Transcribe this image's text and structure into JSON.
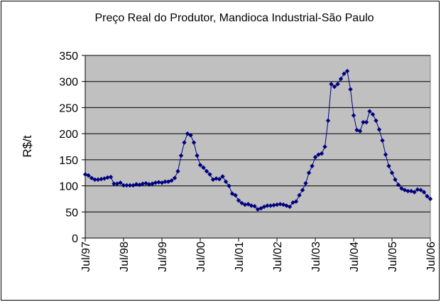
{
  "chart_data": {
    "type": "line",
    "title": "Preço Real do Produtor, Mandioca Industrial-São Paulo",
    "y_label": "R$/t",
    "categories": [
      "Jul/97",
      null,
      null,
      null,
      null,
      null,
      null,
      null,
      null,
      null,
      null,
      null,
      "Jul/98",
      null,
      null,
      null,
      null,
      null,
      null,
      null,
      null,
      null,
      null,
      null,
      "Jul/99",
      null,
      null,
      null,
      null,
      null,
      null,
      null,
      null,
      null,
      null,
      null,
      "Jul/00",
      null,
      null,
      null,
      null,
      null,
      null,
      null,
      null,
      null,
      null,
      null,
      "Jul/01",
      null,
      null,
      null,
      null,
      null,
      null,
      null,
      null,
      null,
      null,
      null,
      "Jul/02",
      null,
      null,
      null,
      null,
      null,
      null,
      null,
      null,
      null,
      null,
      null,
      "Jul/03",
      null,
      null,
      null,
      null,
      null,
      null,
      null,
      null,
      null,
      null,
      null,
      "Jul/04",
      null,
      null,
      null,
      null,
      null,
      null,
      null,
      null,
      null,
      null,
      null,
      "Jul/05",
      null,
      null,
      null,
      null,
      null,
      null,
      null,
      null,
      null,
      null,
      null,
      "Jul/06"
    ],
    "series": [
      {
        "color": "#000080",
        "values": [
          122,
          120,
          115,
          112,
          112,
          113,
          114,
          116,
          117,
          104,
          104,
          106,
          101,
          101,
          101,
          101,
          103,
          102,
          104,
          105,
          103,
          104,
          106,
          107,
          106,
          108,
          108,
          110,
          115,
          128,
          158,
          183,
          200,
          197,
          183,
          158,
          140,
          135,
          128,
          122,
          112,
          114,
          113,
          118,
          108,
          100,
          85,
          82,
          72,
          67,
          64,
          65,
          62,
          61,
          55,
          57,
          60,
          62,
          62,
          63,
          64,
          65,
          64,
          62,
          60,
          68,
          70,
          82,
          92,
          105,
          125,
          138,
          155,
          160,
          162,
          175,
          225,
          295,
          290,
          295,
          305,
          315,
          320,
          285,
          235,
          207,
          205,
          222,
          222,
          243,
          237,
          225,
          208,
          187,
          160,
          138,
          125,
          112,
          102,
          95,
          92,
          90,
          90,
          88,
          93,
          92,
          88,
          80,
          75
        ]
      }
    ],
    "ylim": [
      0,
      350
    ],
    "yticks": [
      0,
      50,
      100,
      150,
      200,
      250,
      300,
      350
    ],
    "grid": true,
    "plot_background": "#c0c0c0"
  }
}
